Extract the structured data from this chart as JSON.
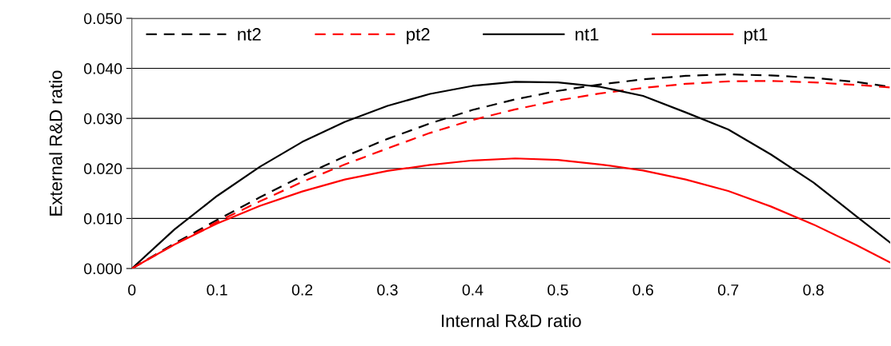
{
  "chart_data": {
    "type": "line",
    "xlabel": "Internal R&D ratio",
    "ylabel": "External R&D ratio",
    "x": [
      0,
      0.05,
      0.1,
      0.15,
      0.2,
      0.25,
      0.3,
      0.35,
      0.4,
      0.45,
      0.5,
      0.55,
      0.6,
      0.65,
      0.7,
      0.75,
      0.8,
      0.85,
      0.89
    ],
    "xlim": [
      0,
      0.89
    ],
    "xticks": [
      0,
      0.1,
      0.2,
      0.3,
      0.4,
      0.5,
      0.6,
      0.7,
      0.8
    ],
    "ylim": [
      0,
      0.05
    ],
    "yticks": [
      {
        "value": 0,
        "label": "0.000"
      },
      {
        "value": 0.01,
        "label": "0.010"
      },
      {
        "value": 0.02,
        "label": "0.020"
      },
      {
        "value": 0.03,
        "label": "0.030"
      },
      {
        "value": 0.04,
        "label": "0.040"
      },
      {
        "value": 0.05,
        "label": "0.050"
      }
    ],
    "grid": "y",
    "legend": "top",
    "marker": "none",
    "series": [
      {
        "name": "nt2",
        "color": "#000000",
        "line_style": "dashed",
        "values": [
          0,
          0.005,
          0.0097,
          0.0142,
          0.0185,
          0.0224,
          0.0259,
          0.029,
          0.0317,
          0.0338,
          0.0355,
          0.0368,
          0.0378,
          0.0385,
          0.0388,
          0.0386,
          0.0381,
          0.0373,
          0.0363
        ]
      },
      {
        "name": "pt2",
        "color": "#ff0000",
        "line_style": "dashed",
        "values": [
          0,
          0.0048,
          0.0093,
          0.0134,
          0.0173,
          0.0208,
          0.024,
          0.0271,
          0.0297,
          0.0318,
          0.0336,
          0.035,
          0.0361,
          0.0369,
          0.0374,
          0.0375,
          0.0372,
          0.0367,
          0.0362
        ]
      },
      {
        "name": "nt1",
        "color": "#000000",
        "line_style": "solid",
        "values": [
          0,
          0.0078,
          0.0145,
          0.0203,
          0.0253,
          0.0293,
          0.0325,
          0.0349,
          0.0365,
          0.0373,
          0.0372,
          0.0363,
          0.0345,
          0.0312,
          0.0278,
          0.0228,
          0.0172,
          0.0105,
          0.0052
        ]
      },
      {
        "name": "pt1",
        "color": "#ff0000",
        "line_style": "solid",
        "values": [
          0,
          0.0048,
          0.009,
          0.0125,
          0.0154,
          0.0178,
          0.0195,
          0.0207,
          0.0216,
          0.022,
          0.0217,
          0.0208,
          0.0196,
          0.0178,
          0.0155,
          0.0124,
          0.0088,
          0.0047,
          0.0012
        ]
      }
    ]
  }
}
